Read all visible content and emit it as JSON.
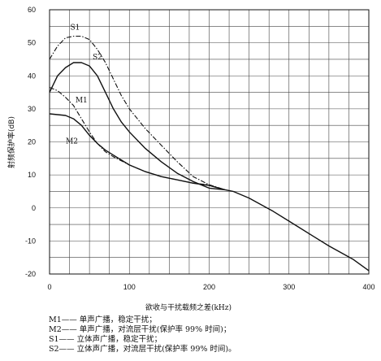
{
  "chart_data": {
    "type": "line",
    "xlabel": "欲收与干扰载频之差(kHz)",
    "ylabel": "射频保护率(dB)",
    "xlim": [
      0,
      400
    ],
    "ylim": [
      -20,
      60
    ],
    "x_ticks": [
      0,
      100,
      200,
      300,
      400
    ],
    "y_ticks": [
      60,
      50,
      40,
      30,
      20,
      10,
      0,
      -10,
      -20
    ],
    "grid": true,
    "series": [
      {
        "name": "S1",
        "style": "dash-dot",
        "x": [
          0,
          10,
          20,
          30,
          40,
          50,
          60,
          70,
          80,
          90,
          100,
          120,
          140,
          160,
          180,
          200,
          220
        ],
        "y": [
          45,
          49,
          51.5,
          52,
          52,
          51,
          48,
          44,
          39,
          34,
          30,
          24,
          19,
          14,
          9.5,
          7,
          5.5
        ]
      },
      {
        "name": "S2",
        "style": "solid",
        "x": [
          0,
          10,
          20,
          30,
          40,
          50,
          60,
          70,
          80,
          90,
          100,
          120,
          140,
          160,
          180,
          200,
          220
        ],
        "y": [
          35,
          40,
          42.5,
          44,
          44,
          43,
          40,
          35,
          30,
          26,
          23,
          18,
          14,
          10.5,
          8,
          6,
          5.5
        ]
      },
      {
        "name": "M1",
        "style": "dash-dot",
        "x": [
          0,
          10,
          20,
          30,
          40,
          50,
          60,
          70,
          80,
          100,
          120,
          140,
          160,
          180,
          200,
          220
        ],
        "y": [
          36.5,
          35.5,
          33.5,
          31,
          27,
          23,
          19.5,
          17,
          15.5,
          13,
          11,
          9.5,
          8.5,
          7.5,
          7,
          5.5
        ]
      },
      {
        "name": "M2",
        "style": "solid",
        "x": [
          0,
          20,
          30,
          40,
          50,
          60,
          70,
          80,
          100,
          120,
          140,
          160,
          180,
          200,
          220,
          230,
          250,
          280,
          300,
          330,
          350,
          380,
          400
        ],
        "y": [
          28.5,
          28,
          27,
          25,
          22,
          19.5,
          17.5,
          16,
          13,
          11,
          9.5,
          8.5,
          7.5,
          6.8,
          5.5,
          5,
          3,
          -1,
          -4,
          -8.5,
          -11.5,
          -15.5,
          -19
        ]
      }
    ],
    "annotations": [
      {
        "text": "S1",
        "x": 32,
        "y": 54
      },
      {
        "text": "S2",
        "x": 60,
        "y": 45
      },
      {
        "text": "M1",
        "x": 40,
        "y": 32
      },
      {
        "text": "M2",
        "x": 28,
        "y": 19.5
      }
    ]
  },
  "legend": [
    "M1—— 单声广播，稳定干扰；",
    "M2—— 单声广播，对流层干扰(保护率 99% 时间)；",
    "S1—— 立体声广播，稳定干扰；",
    "S2—— 立体声广播，对流层干扰(保护率 99% 时间)。"
  ]
}
